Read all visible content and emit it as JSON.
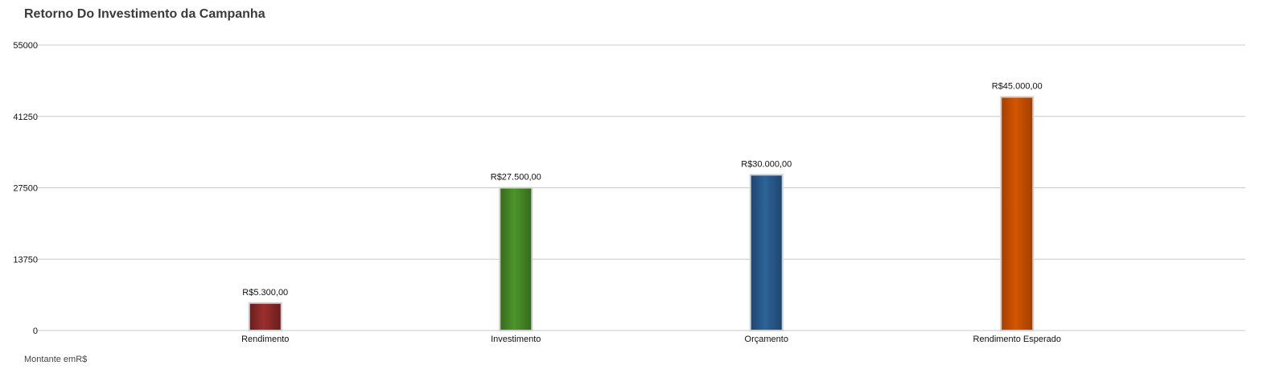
{
  "chart_data": {
    "type": "bar",
    "title": "Retorno Do Investimento da Campanha",
    "footer": "Montante emR$",
    "categories": [
      "Rendimento",
      "Investimento",
      "Orçamento",
      "Rendimento Esperado"
    ],
    "values": [
      5300,
      27500,
      30000,
      45000
    ],
    "data_labels": [
      "R$5.300,00",
      "R$27.500,00",
      "R$30.000,00",
      "R$45.000,00"
    ],
    "colors": [
      "#8a2a2a",
      "#478b27",
      "#2a5b8c",
      "#c95000"
    ],
    "ylim": [
      0,
      55000
    ],
    "yticks": [
      0,
      13750,
      27500,
      41250,
      55000
    ],
    "grid": true,
    "legend": "none"
  }
}
